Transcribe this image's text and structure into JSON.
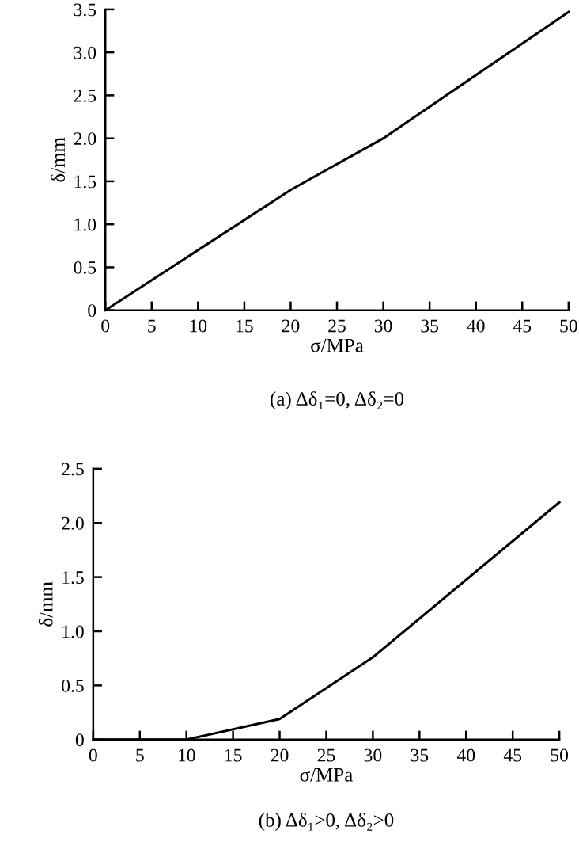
{
  "chart_data": [
    {
      "type": "line",
      "xlabel": "σ/MPa",
      "ylabel": "δ/mm",
      "annotations": [
        "(a) Δδ₁=0, Δδ₂=0"
      ],
      "x": [
        0,
        20,
        30,
        50
      ],
      "series": [
        {
          "color": "#000000",
          "values": [
            0,
            1.4,
            2.0,
            3.47
          ]
        }
      ],
      "xlim": [
        0,
        50
      ],
      "xticks": [
        0,
        5,
        10,
        15,
        20,
        25,
        30,
        35,
        40,
        45,
        50
      ],
      "ylim": [
        0,
        3.5
      ],
      "yticks": [
        {
          "value": 0,
          "label": "0"
        },
        {
          "value": 0.5,
          "label": "0.5"
        },
        {
          "value": 1.0,
          "label": "1.0"
        },
        {
          "value": 1.5,
          "label": "1.5"
        },
        {
          "value": 2.0,
          "label": "2.0"
        },
        {
          "value": 2.5,
          "label": "2.5"
        },
        {
          "value": 3.0,
          "label": "3.0"
        },
        {
          "value": 3.5,
          "label": "3.5"
        }
      ],
      "grid": false,
      "legend": false,
      "marker": "none",
      "line_style": "solid"
    },
    {
      "type": "line",
      "xlabel": "σ/MPa",
      "ylabel": "δ/mm",
      "annotations": [
        "(b) Δδ₁>0, Δδ₂>0"
      ],
      "x": [
        0,
        10,
        20,
        30,
        50
      ],
      "series": [
        {
          "color": "#000000",
          "values": [
            0,
            0,
            0.19,
            0.76,
            2.19
          ]
        }
      ],
      "xlim": [
        0,
        50
      ],
      "xticks": [
        0,
        5,
        10,
        15,
        20,
        25,
        30,
        35,
        40,
        45,
        50
      ],
      "ylim": [
        0,
        2.5
      ],
      "yticks": [
        {
          "value": 0,
          "label": "0"
        },
        {
          "value": 0.5,
          "label": "0.5"
        },
        {
          "value": 1.0,
          "label": "1.0"
        },
        {
          "value": 1.5,
          "label": "1.5"
        },
        {
          "value": 2.0,
          "label": "2.0"
        },
        {
          "value": 2.5,
          "label": "2.5"
        }
      ],
      "grid": false,
      "legend": false,
      "marker": "none",
      "line_style": "solid"
    }
  ]
}
